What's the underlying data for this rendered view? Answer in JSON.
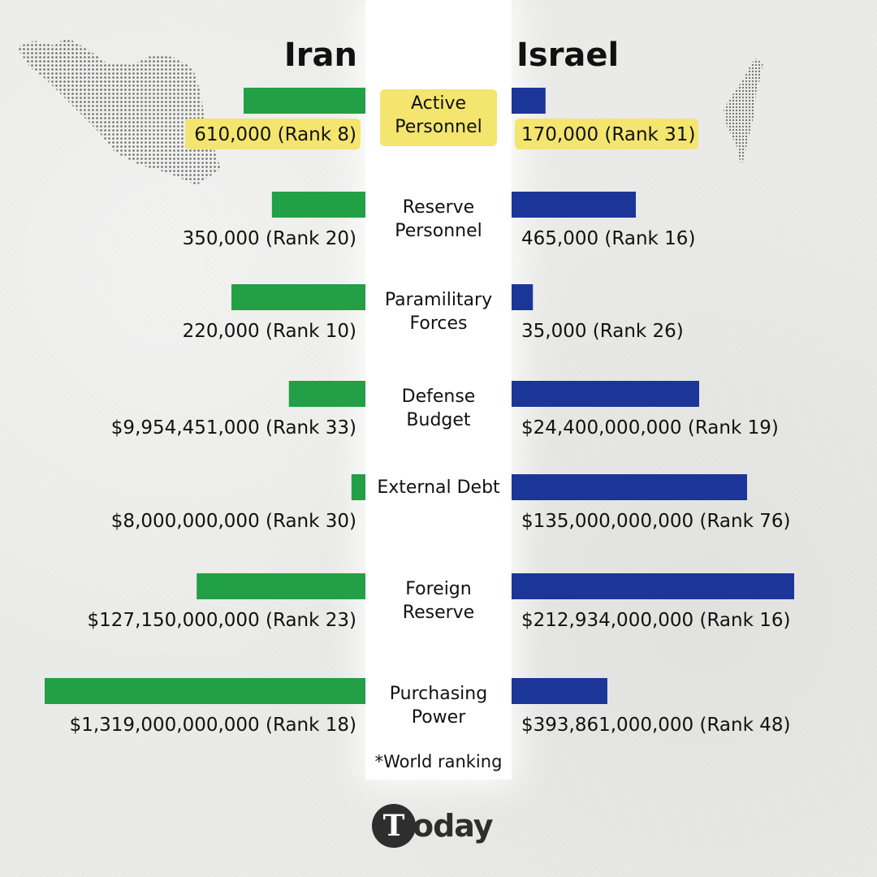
{
  "headers": {
    "left": "Iran",
    "right": "Israel"
  },
  "colors": {
    "iran": "#22a045",
    "israel": "#1b3599",
    "highlight": "#f3e56e"
  },
  "footnote": "*World ranking",
  "logo": {
    "letter": "T",
    "text": "oday"
  },
  "chart_data": {
    "type": "bar",
    "orientation": "horizontal-butterfly",
    "highlighted_category": "Active Personnel",
    "categories": [
      "Active Personnel",
      "Reserve Personnel",
      "Paramilitary Forces",
      "Defense Budget",
      "External Debt",
      "Foreign Reserve",
      "Purchasing Power"
    ],
    "category_lines": [
      [
        "Active",
        "Personnel"
      ],
      [
        "Reserve",
        "Personnel"
      ],
      [
        "Paramilitary",
        "Forces"
      ],
      [
        "Defense",
        "Budget"
      ],
      [
        "External Debt"
      ],
      [
        "Foreign",
        "Reserve"
      ],
      [
        "Purchasing",
        "Power"
      ]
    ],
    "series": [
      {
        "name": "Iran",
        "values": [
          610000,
          350000,
          220000,
          9954451000,
          8000000000,
          127150000000,
          1319000000000
        ],
        "labels": [
          "610,000 (Rank 8)",
          "350,000 (Rank 20)",
          "220,000 (Rank 10)",
          "$9,954,451,000 (Rank 33)",
          "$8,000,000,000 (Rank 30)",
          "$127,150,000,000 (Rank 23)",
          "$1,319,000,000,000 (Rank 18)"
        ]
      },
      {
        "name": "Israel",
        "values": [
          170000,
          465000,
          35000,
          24400000000,
          135000000000,
          212934000000,
          393861000000
        ],
        "labels": [
          "170,000 (Rank 31)",
          "465,000 (Rank 16)",
          "35,000 (Rank 26)",
          "$24,400,000,000 (Rank 19)",
          "$135,000,000,000 (Rank 76)",
          "$212,934,000,000 (Rank 16)",
          "$393,861,000,000 (Rank 48)"
        ]
      }
    ]
  }
}
